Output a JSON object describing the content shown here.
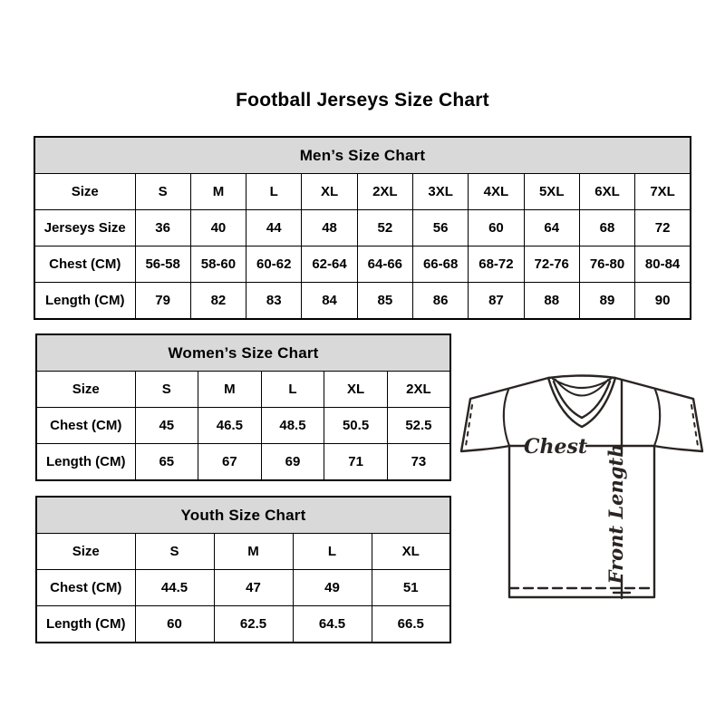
{
  "page": {
    "title": "Football Jerseys Size Chart"
  },
  "tables": {
    "mens": {
      "title": "Men’s Size Chart",
      "rows": [
        {
          "label": "Size",
          "values": [
            "S",
            "M",
            "L",
            "XL",
            "2XL",
            "3XL",
            "4XL",
            "5XL",
            "6XL",
            "7XL"
          ]
        },
        {
          "label": "Jerseys Size",
          "values": [
            "36",
            "40",
            "44",
            "48",
            "52",
            "56",
            "60",
            "64",
            "68",
            "72"
          ]
        },
        {
          "label": "Chest (CM)",
          "values": [
            "56-58",
            "58-60",
            "60-62",
            "62-64",
            "64-66",
            "66-68",
            "68-72",
            "72-76",
            "76-80",
            "80-84"
          ]
        },
        {
          "label": "Length (CM)",
          "values": [
            "79",
            "82",
            "83",
            "84",
            "85",
            "86",
            "87",
            "88",
            "89",
            "90"
          ]
        }
      ]
    },
    "womens": {
      "title": "Women’s Size Chart",
      "rows": [
        {
          "label": "Size",
          "values": [
            "S",
            "M",
            "L",
            "XL",
            "2XL"
          ]
        },
        {
          "label": "Chest (CM)",
          "values": [
            "45",
            "46.5",
            "48.5",
            "50.5",
            "52.5"
          ]
        },
        {
          "label": "Length (CM)",
          "values": [
            "65",
            "67",
            "69",
            "71",
            "73"
          ]
        }
      ]
    },
    "youth": {
      "title": "Youth Size Chart",
      "rows": [
        {
          "label": "Size",
          "values": [
            "S",
            "M",
            "L",
            "XL"
          ]
        },
        {
          "label": "Chest (CM)",
          "values": [
            "44.5",
            "47",
            "49",
            "51"
          ]
        },
        {
          "label": "Length (CM)",
          "values": [
            "60",
            "62.5",
            "64.5",
            "66.5"
          ]
        }
      ]
    }
  },
  "jersey": {
    "chest_label": "Chest",
    "front_length_label": "Front Length"
  },
  "colors": {
    "background": "#ffffff",
    "table_border": "#000000",
    "header_bg": "#d9d9d9",
    "text": "#000000",
    "jersey_outline": "#2a2422"
  }
}
